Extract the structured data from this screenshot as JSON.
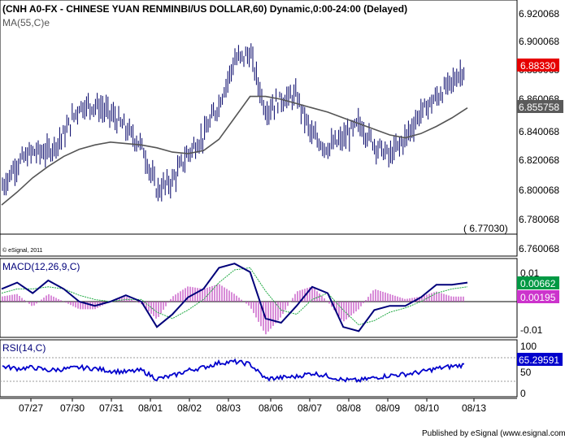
{
  "chart_data": [
    {
      "type": "line",
      "title": "(CNH A0-FX - CHINESE YUAN RENMINBI/US DOLLAR,60) Dynamic,0:00-24:00 (Delayed)",
      "copyright": "© eSignal, 2011",
      "series": [
        {
          "name": "MA(55,C)e",
          "color": "#555555"
        }
      ],
      "price_bar_color": "#000066",
      "x_tick_labels": [
        "07/27",
        "07/30",
        "07/31",
        "08/01",
        "08/02",
        "08/03",
        "08/06",
        "08/07",
        "08/08",
        "08/09",
        "08/10",
        "08/13"
      ],
      "y_tick_labels": [
        "6.920068",
        "6.900068",
        "6.880068",
        "6.860068",
        "6.840068",
        "6.820068",
        "6.800068",
        "6.780068",
        "6.760068"
      ],
      "ylim": [
        6.758,
        6.922
      ],
      "last_price": "6.88330",
      "last_price_color": "#e60000",
      "ma_value": "6.855758",
      "low_marker": "( 6.77030)",
      "grid": false,
      "ma_values": [
        6.787,
        6.796,
        6.806,
        6.814,
        6.821,
        6.826,
        6.829,
        6.831,
        6.83,
        6.829,
        6.827,
        6.824,
        6.823,
        6.825,
        6.833,
        6.848,
        6.863,
        6.863,
        6.861,
        6.858,
        6.855,
        6.852,
        6.848,
        6.844,
        6.84,
        6.836,
        6.834,
        6.837,
        6.842,
        6.848,
        6.855
      ]
    },
    {
      "type": "line",
      "title": "MACD(12,26,9,C)",
      "y_tick_labels": [
        "0.01",
        "-0.01"
      ],
      "macd_value": "0.00662",
      "signal_value": "0.00195",
      "macd_color": "#00007a",
      "histogram_color": "#bf40bf",
      "signal_color": "#22aa44",
      "ylim": [
        -0.012,
        0.013
      ]
    },
    {
      "type": "line",
      "title": "RSI(14,C)",
      "y_tick_labels": [
        "100",
        "50",
        "0"
      ],
      "rsi_value": "65.29591",
      "ylim": [
        0,
        100
      ],
      "rsi_color": "#0000cc"
    }
  ],
  "footer": {
    "published": "Published by eSignal (www.esignal.com)"
  }
}
